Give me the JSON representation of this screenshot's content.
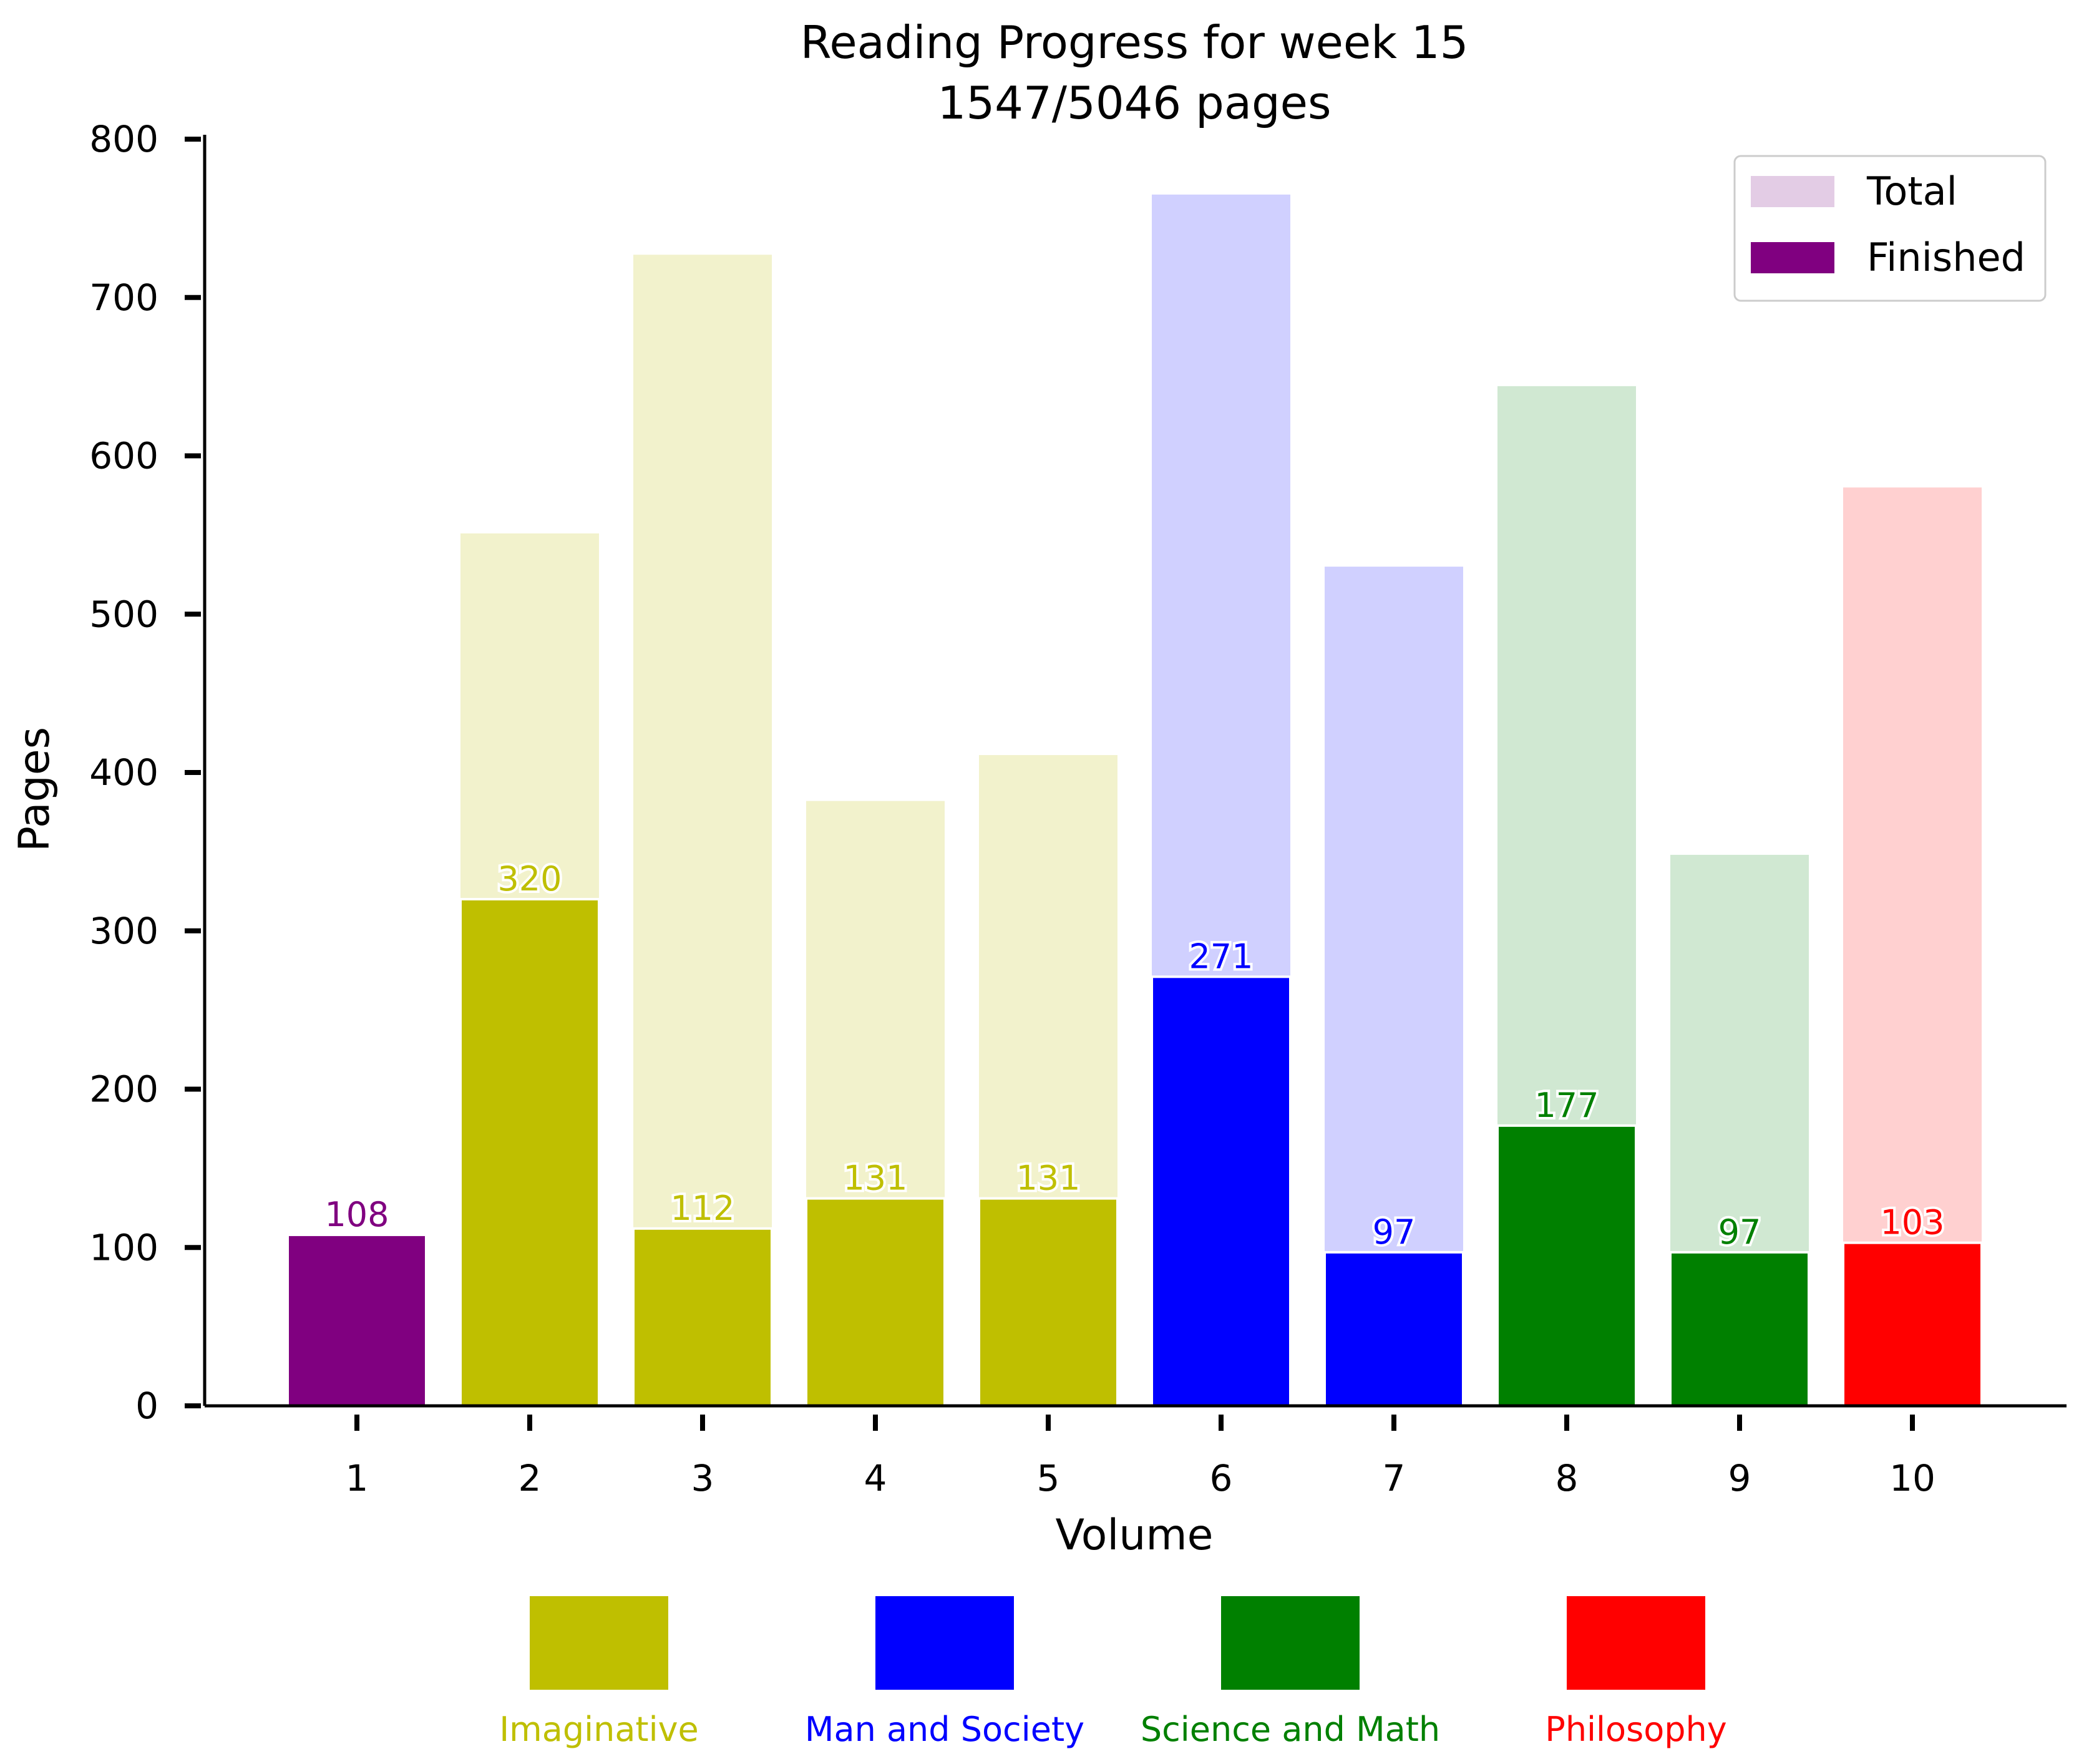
{
  "chart_data": {
    "type": "bar",
    "title": "Reading Progress for week 15",
    "subtitle": "1547/5046 pages",
    "xlabel": "Volume",
    "ylabel": "Pages",
    "ylim": [
      0,
      800
    ],
    "yticks": [
      "0",
      "100",
      "200",
      "300",
      "400",
      "500",
      "600",
      "700",
      "800"
    ],
    "categories": [
      "1",
      "2",
      "3",
      "4",
      "5",
      "6",
      "7",
      "8",
      "9",
      "10"
    ],
    "series": [
      {
        "name": "Total",
        "values": [
          108,
          551,
          727,
          382,
          411,
          765,
          530,
          644,
          348,
          580
        ]
      },
      {
        "name": "Finished",
        "values": [
          108,
          320,
          112,
          131,
          131,
          271,
          97,
          177,
          97,
          103
        ]
      }
    ],
    "data_labels": [
      "108",
      "320",
      "112",
      "131",
      "131",
      "271",
      "97",
      "177",
      "97",
      "103"
    ],
    "bar_groups": [
      "none",
      "Imaginative",
      "Imaginative",
      "Imaginative",
      "Imaginative",
      "Man and Society",
      "Man and Society",
      "Science and Math",
      "Science and Math",
      "Philosophy"
    ],
    "legend": {
      "placement": "top-right",
      "entries": [
        {
          "label": "Total",
          "color": "#e3cce5"
        },
        {
          "label": "Finished",
          "color": "#800080"
        }
      ]
    },
    "category_legend": {
      "placement": "bottom",
      "entries": [
        {
          "label": "Imaginative",
          "color": "#bfbf00"
        },
        {
          "label": "Man and Society",
          "color": "#0000ff"
        },
        {
          "label": "Science and Math",
          "color": "#008000"
        },
        {
          "label": "Philosophy",
          "color": "#ff0000"
        }
      ]
    },
    "colors": {
      "none": {
        "finished": "#800080",
        "total": "#e3cce5"
      },
      "Imaginative": {
        "finished": "#bfbf00",
        "total": "#f2f2cc"
      },
      "Man and Society": {
        "finished": "#0000ff",
        "total": "#d0d0ff"
      },
      "Science and Math": {
        "finished": "#008000",
        "total": "#d0e8d2"
      },
      "Philosophy": {
        "finished": "#ff0000",
        "total": "#ffd0d0"
      }
    },
    "grid": false
  }
}
